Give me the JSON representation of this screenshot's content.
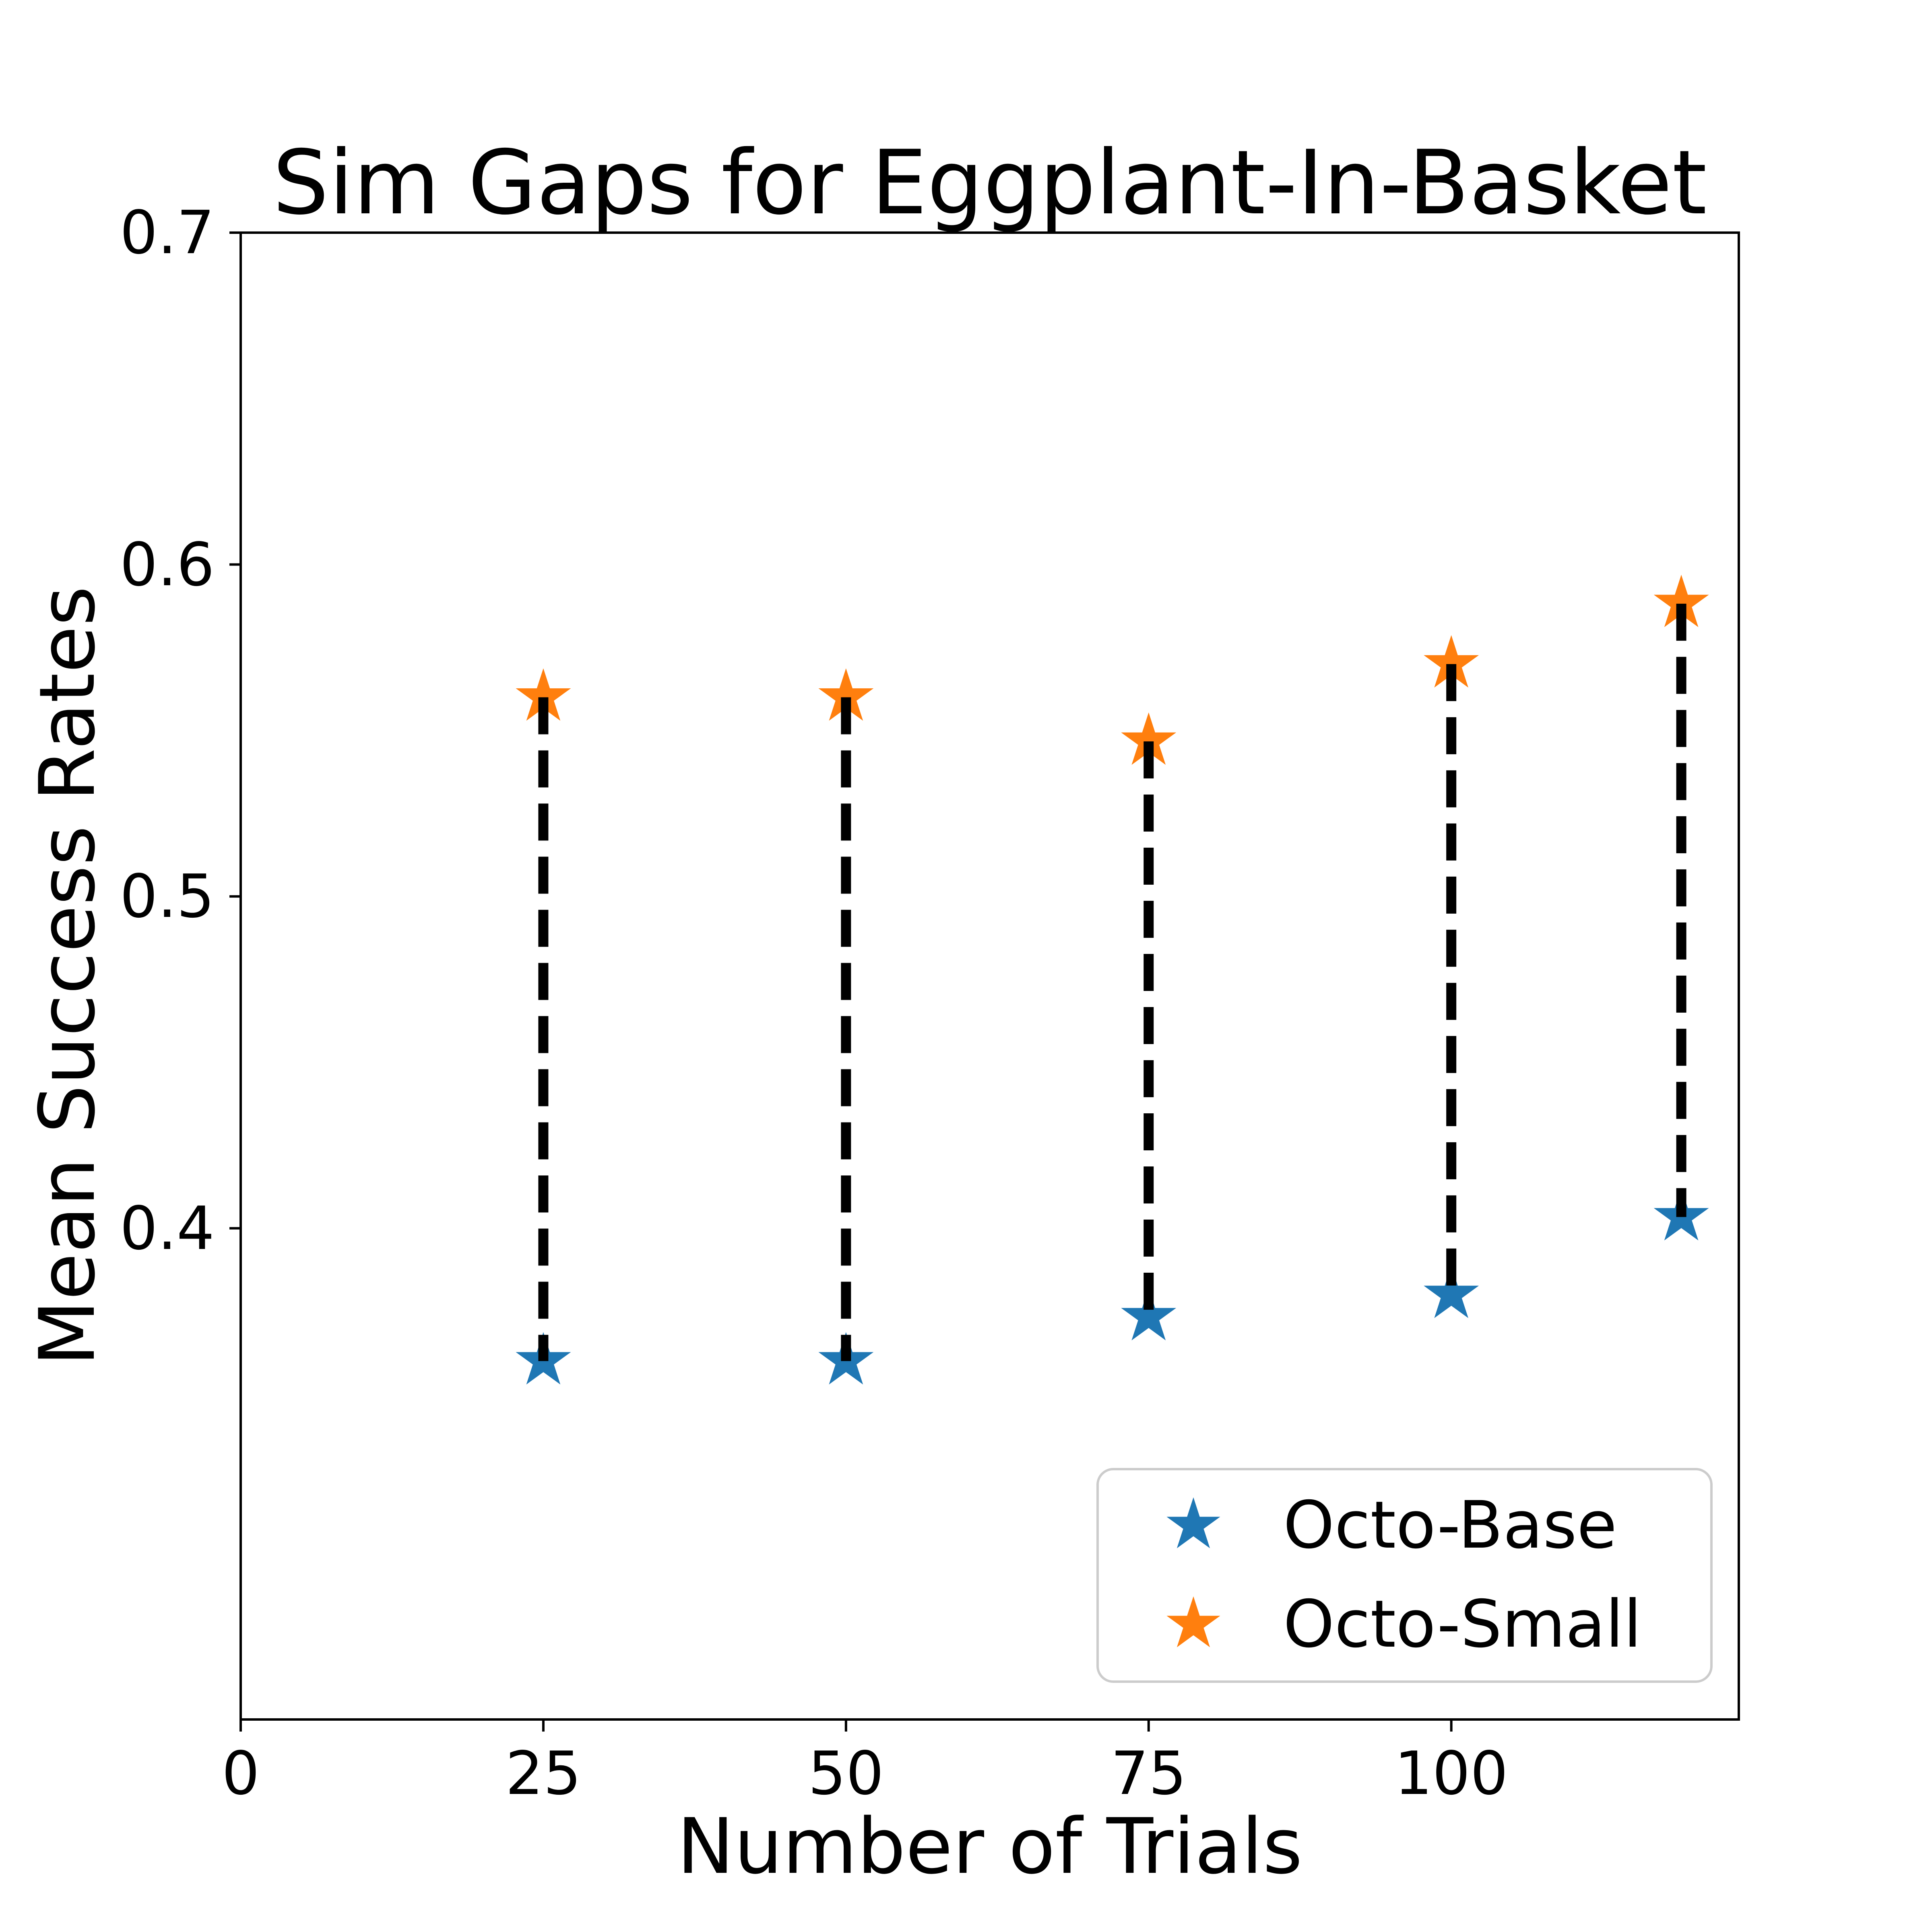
{
  "chart_data": {
    "type": "scatter",
    "title": "Sim Gaps for Eggplant-In-Basket",
    "xlabel": "Number of Trials",
    "ylabel": "Mean Success Rates",
    "x": [
      25,
      50,
      75,
      100,
      119
    ],
    "series": [
      {
        "name": "Octo-Base",
        "color": "#1f77b4",
        "marker": "star",
        "values": [
          0.36,
          0.36,
          0.3733,
          0.38,
          0.4034
        ]
      },
      {
        "name": "Octo-Small",
        "color": "#ff7f0e",
        "marker": "star",
        "values": [
          0.56,
          0.56,
          0.5467,
          0.57,
          0.5882
        ]
      }
    ],
    "connectors": {
      "type": "vertical-dashed-gap-line",
      "color": "#000000",
      "joins": "Octo-Small to Octo-Base at each x"
    },
    "xlim": [
      0,
      123.75
    ],
    "ylim": [
      0.252,
      0.7
    ],
    "xticks": [
      0,
      25,
      50,
      75,
      100
    ],
    "yticks": [
      0.7,
      0.6,
      0.5,
      0.4
    ],
    "grid": false,
    "legend": {
      "position": "lower right",
      "entries": [
        "Octo-Base",
        "Octo-Small"
      ]
    }
  }
}
